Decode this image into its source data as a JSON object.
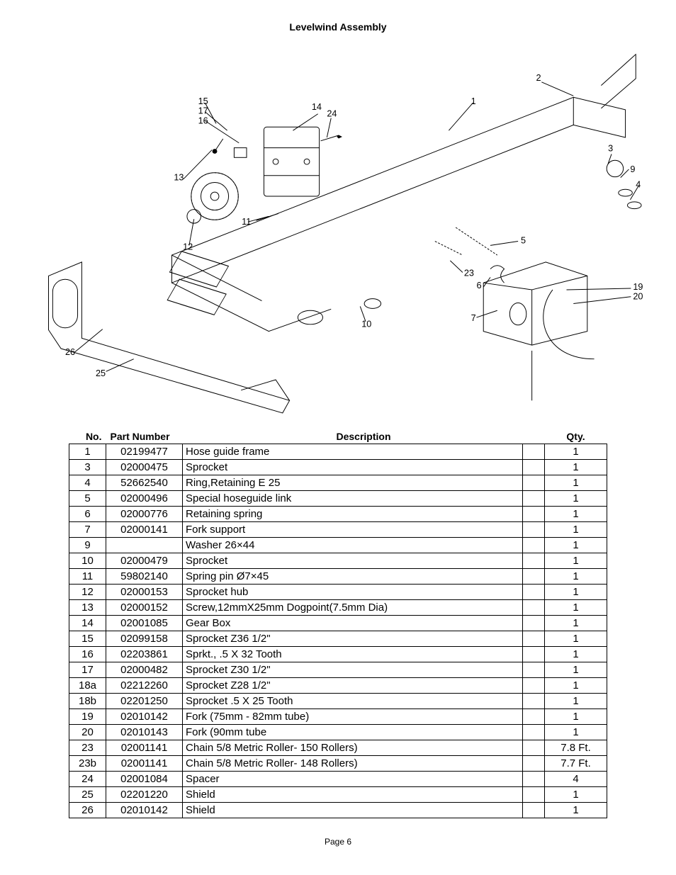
{
  "title": "Levelwind Assembly",
  "page_label": "Page 6",
  "diagram": {
    "stroke": "#000000",
    "stroke_width": 1,
    "callouts": [
      {
        "id": "c15",
        "label": "15"
      },
      {
        "id": "c17",
        "label": "17"
      },
      {
        "id": "c16",
        "label": "16"
      },
      {
        "id": "c14",
        "label": "14"
      },
      {
        "id": "c24",
        "label": "24"
      },
      {
        "id": "c1",
        "label": "1"
      },
      {
        "id": "c2",
        "label": "2"
      },
      {
        "id": "c3",
        "label": "3"
      },
      {
        "id": "c9",
        "label": "9"
      },
      {
        "id": "c4",
        "label": "4"
      },
      {
        "id": "c13",
        "label": "13"
      },
      {
        "id": "c11",
        "label": "11"
      },
      {
        "id": "c12",
        "label": "12"
      },
      {
        "id": "c5",
        "label": "5"
      },
      {
        "id": "c23",
        "label": "23"
      },
      {
        "id": "c6",
        "label": "6"
      },
      {
        "id": "c7",
        "label": "7"
      },
      {
        "id": "c10",
        "label": "10"
      },
      {
        "id": "c19",
        "label": "19"
      },
      {
        "id": "c20",
        "label": "20"
      },
      {
        "id": "c26",
        "label": "26"
      },
      {
        "id": "c25",
        "label": "25"
      }
    ]
  },
  "table": {
    "headers": {
      "no": "No.",
      "pn": "Part Number",
      "desc": "Description",
      "qty": "Qty."
    },
    "rows": [
      {
        "no": "1",
        "pn": "02199477",
        "desc": "Hose guide frame",
        "qty": "1"
      },
      {
        "no": "3",
        "pn": "02000475",
        "desc": "Sprocket",
        "qty": "1"
      },
      {
        "no": "4",
        "pn": "52662540",
        "desc": "Ring,Retaining E 25",
        "qty": "1"
      },
      {
        "no": "5",
        "pn": "02000496",
        "desc": "Special hoseguide link",
        "qty": "1"
      },
      {
        "no": "6",
        "pn": "02000776",
        "desc": "Retaining spring",
        "qty": "1"
      },
      {
        "no": "7",
        "pn": "02000141",
        "desc": "Fork support",
        "qty": "1"
      },
      {
        "no": "9",
        "pn": "",
        "desc": "Washer 26×44",
        "qty": "1"
      },
      {
        "no": "10",
        "pn": "02000479",
        "desc": "Sprocket",
        "qty": "1"
      },
      {
        "no": "11",
        "pn": "59802140",
        "desc": "Spring pin Ø7×45",
        "qty": "1"
      },
      {
        "no": "12",
        "pn": "02000153",
        "desc": "Sprocket hub",
        "qty": "1"
      },
      {
        "no": "13",
        "pn": "02000152",
        "desc": "Screw,12mmX25mm Dogpoint(7.5mm Dia)",
        "qty": "1"
      },
      {
        "no": "14",
        "pn": "02001085",
        "desc": "Gear Box",
        "qty": "1"
      },
      {
        "no": "15",
        "pn": "02099158",
        "desc": "Sprocket Z36 1/2\"",
        "qty": "1"
      },
      {
        "no": "16",
        "pn": "02203861",
        "desc": "Sprkt., .5 X 32 Tooth",
        "qty": "1"
      },
      {
        "no": "17",
        "pn": "02000482",
        "desc": "Sprocket Z30 1/2\"",
        "qty": "1"
      },
      {
        "no": "18a",
        "pn": "02212260",
        "desc": "Sprocket Z28 1/2\"",
        "qty": "1"
      },
      {
        "no": "18b",
        "pn": "02201250",
        "desc": "Sprocket .5 X 25 Tooth",
        "qty": "1"
      },
      {
        "no": "19",
        "pn": "02010142",
        "desc": "Fork  (75mm - 82mm tube)",
        "qty": "1"
      },
      {
        "no": "20",
        "pn": "02010143",
        "desc": "Fork (90mm tube",
        "qty": "1"
      },
      {
        "no": "23",
        "pn": "02001141",
        "desc": "Chain 5/8 Metric Roller- 150 Rollers)",
        "qty": "7.8 Ft."
      },
      {
        "no": "23b",
        "pn": "02001141",
        "desc": "Chain 5/8 Metric Roller- 148 Rollers)",
        "qty": "7.7 Ft."
      },
      {
        "no": "24",
        "pn": "02001084",
        "desc": "Spacer",
        "qty": "4"
      },
      {
        "no": "25",
        "pn": "02201220",
        "desc": "Shield",
        "qty": "1"
      },
      {
        "no": "26",
        "pn": "02010142",
        "desc": "Shield",
        "qty": "1"
      }
    ]
  }
}
